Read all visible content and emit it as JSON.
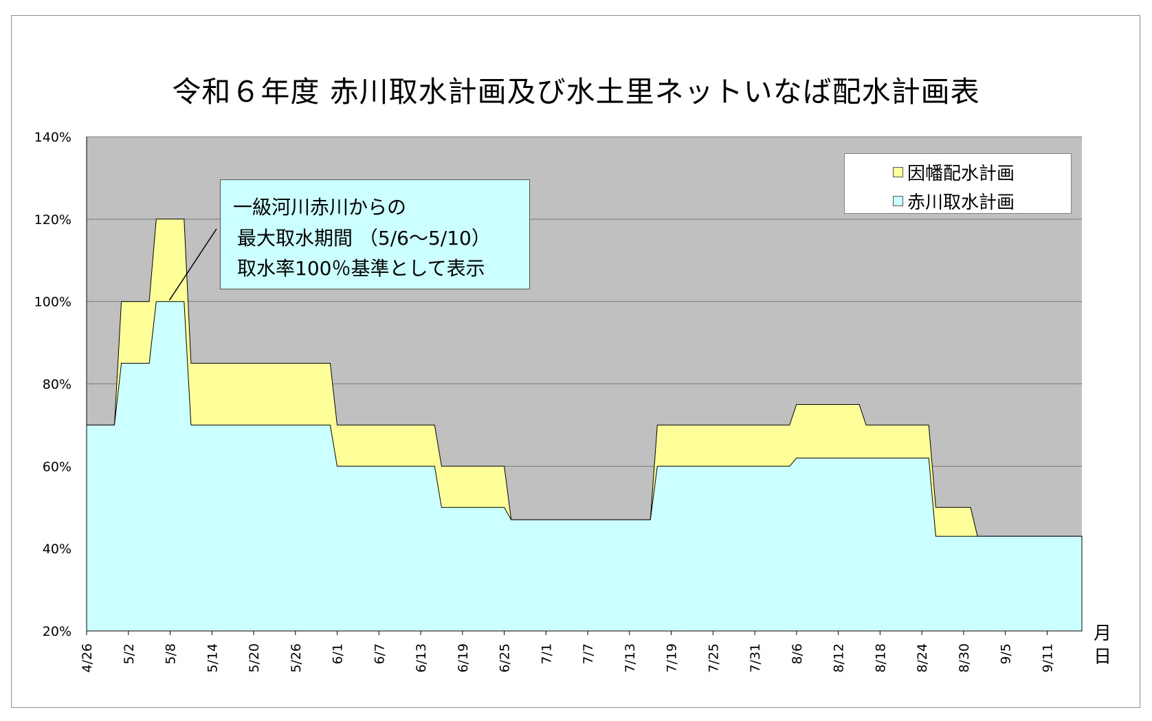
{
  "chart_data": {
    "type": "area",
    "title": "令和６年度 赤川取水計画及び水土里ネットいなば配水計画表",
    "xunit": [
      "月",
      "日"
    ],
    "ylim": [
      20,
      140
    ],
    "yticks": [
      "20%",
      "40%",
      "60%",
      "80%",
      "100%",
      "120%",
      "140%"
    ],
    "grid": true,
    "legend_position": "top-right",
    "x_tick_labels": [
      "4/26",
      "5/2",
      "5/8",
      "5/14",
      "5/20",
      "5/26",
      "6/1",
      "6/7",
      "6/13",
      "6/19",
      "6/25",
      "7/1",
      "7/7",
      "7/13",
      "7/19",
      "7/25",
      "7/31",
      "8/6",
      "8/12",
      "8/18",
      "8/24",
      "8/30",
      "9/5",
      "9/11"
    ],
    "x_start": "4/26",
    "x_end": "9/16",
    "series": [
      {
        "name": "因幡配水計画",
        "color": "#ffff99",
        "points": [
          [
            "4/26",
            70
          ],
          [
            "4/30",
            70
          ],
          [
            "5/1",
            100
          ],
          [
            "5/5",
            100
          ],
          [
            "5/6",
            120
          ],
          [
            "5/10",
            120
          ],
          [
            "5/11",
            85
          ],
          [
            "5/31",
            85
          ],
          [
            "6/1",
            70
          ],
          [
            "6/15",
            70
          ],
          [
            "6/16",
            60
          ],
          [
            "6/25",
            60
          ],
          [
            "6/26",
            47
          ],
          [
            "7/16",
            47
          ],
          [
            "7/17",
            70
          ],
          [
            "8/5",
            70
          ],
          [
            "8/6",
            75
          ],
          [
            "8/15",
            75
          ],
          [
            "8/16",
            70
          ],
          [
            "8/25",
            70
          ],
          [
            "8/26",
            50
          ],
          [
            "8/31",
            50
          ],
          [
            "9/1",
            43
          ],
          [
            "9/16",
            43
          ]
        ]
      },
      {
        "name": "赤川取水計画",
        "color": "#ccffff",
        "points": [
          [
            "4/26",
            70
          ],
          [
            "4/30",
            70
          ],
          [
            "5/1",
            85
          ],
          [
            "5/5",
            85
          ],
          [
            "5/6",
            100
          ],
          [
            "5/10",
            100
          ],
          [
            "5/11",
            70
          ],
          [
            "5/31",
            70
          ],
          [
            "6/1",
            60
          ],
          [
            "6/15",
            60
          ],
          [
            "6/16",
            50
          ],
          [
            "6/25",
            50
          ],
          [
            "6/26",
            47
          ],
          [
            "7/16",
            47
          ],
          [
            "7/17",
            60
          ],
          [
            "8/5",
            60
          ],
          [
            "8/6",
            62
          ],
          [
            "8/25",
            62
          ],
          [
            "8/26",
            43
          ],
          [
            "9/16",
            43
          ]
        ]
      }
    ],
    "annotation": {
      "lines": [
        "一級河川赤川からの",
        "最大取水期間 （5/6～5/10）",
        "取水率100％基準として表示"
      ],
      "pointer_date": "5/8",
      "pointer_value": 100
    },
    "plot_background": "#c0c0c0"
  }
}
